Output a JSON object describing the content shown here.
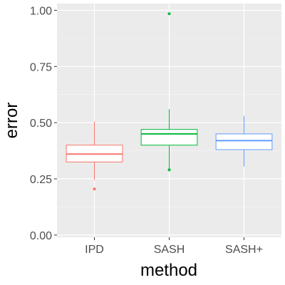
{
  "chart_data": {
    "type": "boxplot",
    "xlabel": "method",
    "ylabel": "error",
    "ylim": [
      -0.01,
      1.03
    ],
    "y_ticks": [
      0.0,
      0.25,
      0.5,
      0.75,
      1.0
    ],
    "y_tick_labels": [
      "0.00",
      "0.25",
      "0.50",
      "0.75",
      "1.00"
    ],
    "grid": true,
    "legend": "none",
    "categories": [
      "IPD",
      "SASH",
      "SASH+"
    ],
    "series": [
      {
        "category": "IPD",
        "color": "#F8766D",
        "whisker_low": 0.245,
        "q1": 0.325,
        "median": 0.36,
        "q3": 0.4,
        "whisker_high": 0.505,
        "outliers": [
          0.205
        ]
      },
      {
        "category": "SASH",
        "color": "#00BA38",
        "whisker_low": 0.295,
        "q1": 0.4,
        "median": 0.45,
        "q3": 0.47,
        "whisker_high": 0.56,
        "outliers": [
          0.29,
          0.985
        ]
      },
      {
        "category": "SASH+",
        "color": "#619CFF",
        "whisker_low": 0.305,
        "q1": 0.38,
        "median": 0.42,
        "q3": 0.45,
        "whisker_high": 0.53,
        "outliers": []
      }
    ]
  }
}
